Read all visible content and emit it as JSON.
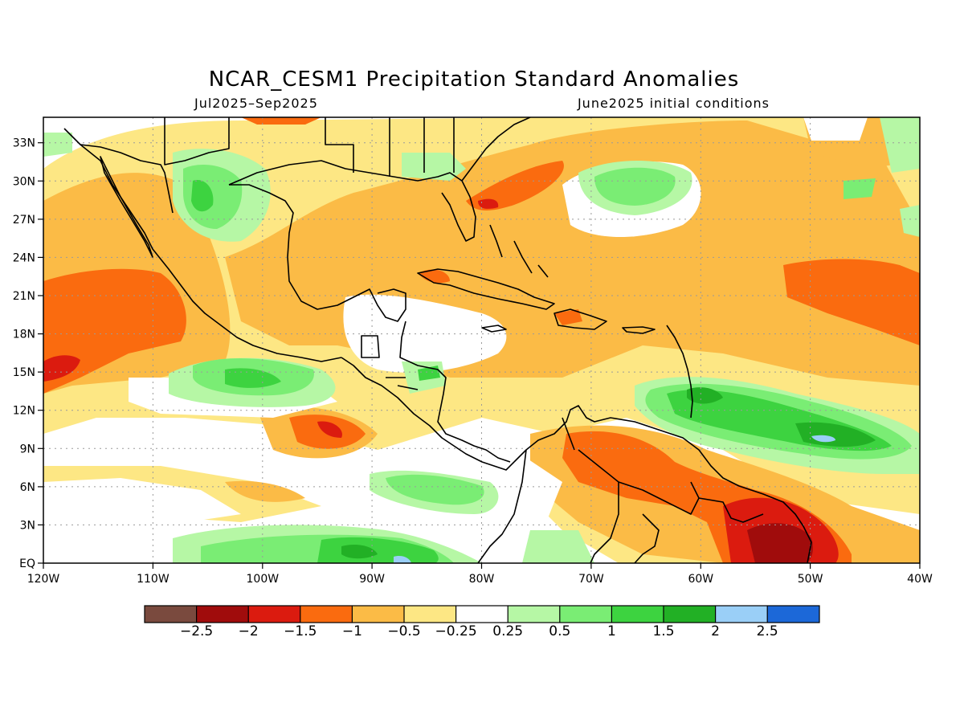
{
  "title": "NCAR_CESM1 Precipitation Standard Anomalies",
  "subtitle_left": "Jul2025–Sep2025",
  "subtitle_right": "June2025 initial conditions",
  "map": {
    "lon_range": [
      -120,
      -40
    ],
    "lat_range": [
      0,
      35
    ],
    "lon_ticks": [
      "120W",
      "110W",
      "100W",
      "90W",
      "80W",
      "70W",
      "60W",
      "50W",
      "40W"
    ],
    "lat_ticks": [
      "EQ",
      "3N",
      "6N",
      "9N",
      "12N",
      "15N",
      "18N",
      "21N",
      "24N",
      "27N",
      "30N",
      "33N"
    ],
    "gridlines": "dotted"
  },
  "colorbar": {
    "colors": [
      "#7a4a3e",
      "#a00c0c",
      "#db1b0f",
      "#fa6b0f",
      "#fbbb46",
      "#fde784",
      "#ffffff",
      "#b6f7a5",
      "#7aed74",
      "#3dd340",
      "#22b025",
      "#9acff7",
      "#1c68d8"
    ],
    "labels": [
      "−2.5",
      "−2",
      "−1.5",
      "−1",
      "−0.5",
      "−0.25",
      "0.25",
      "0.5",
      "1",
      "1.5",
      "2",
      "2.5"
    ]
  }
}
